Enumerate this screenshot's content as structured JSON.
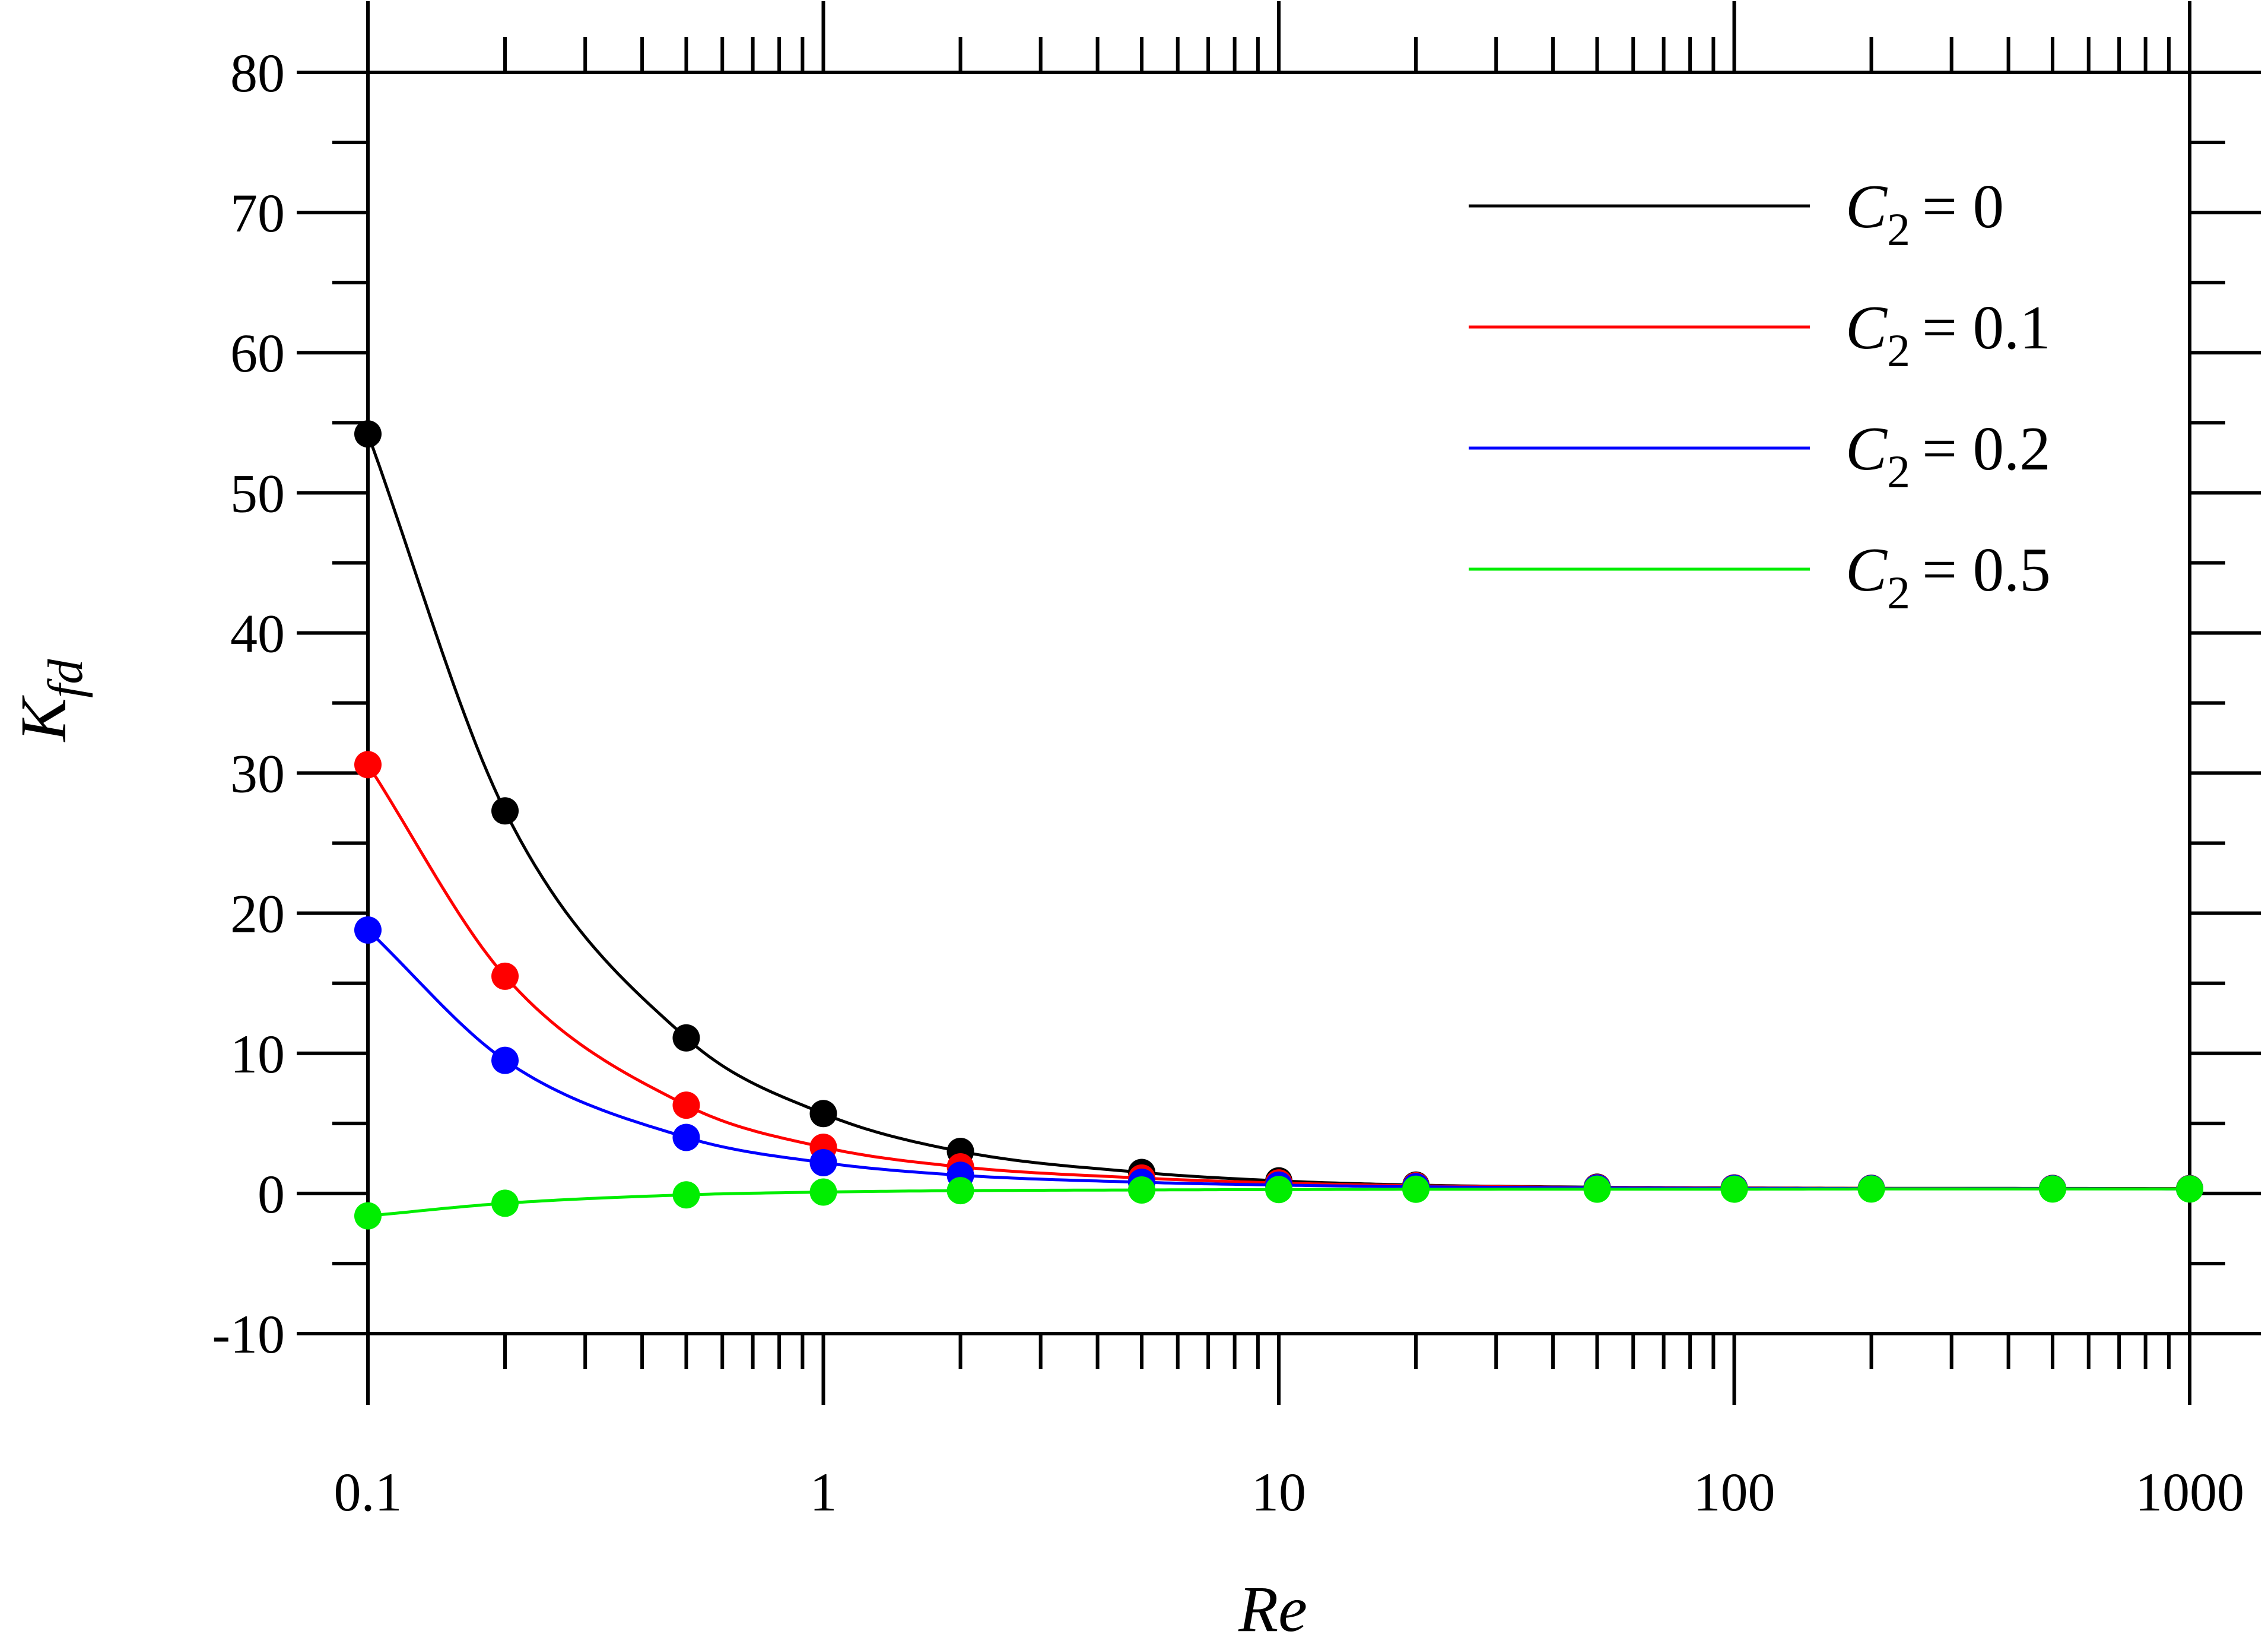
{
  "chart_data": {
    "type": "scatter",
    "title": "",
    "xlabel": "Re",
    "ylabel_main": "K",
    "ylabel_sub": "fd",
    "xscale": "log",
    "xlim": [
      0.1,
      1000
    ],
    "ylim": [
      -10,
      80
    ],
    "grid": false,
    "legend_position": "top-right",
    "x_tick_values": [
      0.1,
      1,
      10,
      100,
      1000
    ],
    "x_tick_labels": [
      "0.1",
      "1",
      "10",
      "100",
      "1000"
    ],
    "y_tick_values": [
      -10,
      0,
      10,
      20,
      30,
      40,
      50,
      60,
      70,
      80
    ],
    "y_tick_labels": [
      "-10",
      "0",
      "10",
      "20",
      "30",
      "40",
      "50",
      "60",
      "70",
      "80"
    ],
    "x": [
      0.1,
      0.2,
      0.5,
      1,
      2,
      5,
      10,
      20,
      50,
      100,
      200,
      500,
      1000
    ],
    "series": [
      {
        "symbol": "C",
        "subscript": "2",
        "value_text": "= 0",
        "color": "#000000",
        "values": [
          54.2,
          27.3,
          11.1,
          5.7,
          3.0,
          1.5,
          0.9,
          0.6,
          0.45,
          0.4,
          0.37,
          0.36,
          0.35
        ]
      },
      {
        "symbol": "C",
        "subscript": "2",
        "value_text": "= 0.1",
        "color": "#ff0000",
        "values": [
          30.6,
          15.5,
          6.3,
          3.3,
          1.9,
          1.1,
          0.75,
          0.55,
          0.43,
          0.39,
          0.36,
          0.35,
          0.34
        ]
      },
      {
        "symbol": "C",
        "subscript": "2",
        "value_text": "= 0.2",
        "color": "#0000ff",
        "values": [
          18.8,
          9.5,
          4.0,
          2.2,
          1.3,
          0.8,
          0.6,
          0.48,
          0.4,
          0.37,
          0.35,
          0.34,
          0.33
        ]
      },
      {
        "symbol": "C",
        "subscript": "2",
        "value_text": "= 0.5",
        "color": "#00ee00",
        "values": [
          -1.6,
          -0.7,
          -0.1,
          0.1,
          0.2,
          0.25,
          0.28,
          0.3,
          0.31,
          0.31,
          0.32,
          0.32,
          0.32
        ]
      }
    ]
  }
}
